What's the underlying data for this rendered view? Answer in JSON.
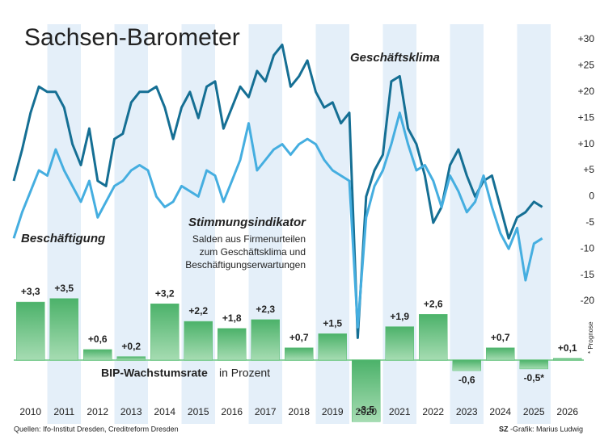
{
  "chart_data": [
    {
      "type": "line",
      "title": "Sachsen-Barometer",
      "annotation": "Stimmungsindikator",
      "subtitle": [
        "Salden aus Firmenurteilen",
        "zum Geschäftsklima und",
        "Beschäftigungserwartungen"
      ],
      "x": [
        2010,
        2010.25,
        2010.5,
        2010.75,
        2011,
        2011.25,
        2011.5,
        2011.75,
        2012,
        2012.25,
        2012.5,
        2012.75,
        2013,
        2013.25,
        2013.5,
        2013.75,
        2014,
        2014.25,
        2014.5,
        2014.75,
        2015,
        2015.25,
        2015.5,
        2015.75,
        2016,
        2016.25,
        2016.5,
        2016.75,
        2017,
        2017.25,
        2017.5,
        2017.75,
        2018,
        2018.25,
        2018.5,
        2018.75,
        2019,
        2019.25,
        2019.5,
        2019.75,
        2020,
        2020.25,
        2020.5,
        2020.75,
        2021,
        2021.25,
        2021.5,
        2021.75,
        2022,
        2022.25,
        2022.5,
        2022.75,
        2023,
        2023.25,
        2023.5,
        2023.75,
        2024,
        2024.25,
        2024.5,
        2024.75,
        2025,
        2025.25,
        2025.5,
        2025.75
      ],
      "xlim": [
        2010,
        2027
      ],
      "ylim": [
        -20,
        30
      ],
      "yticks": [
        {
          "value": 30,
          "label": "+30"
        },
        {
          "value": 25,
          "label": "+25"
        },
        {
          "value": 20,
          "label": "+20"
        },
        {
          "value": 15,
          "label": "+15"
        },
        {
          "value": 10,
          "label": "+10"
        },
        {
          "value": 5,
          "label": "+5"
        },
        0,
        -5,
        -10,
        -15,
        -20
      ],
      "grid": false,
      "series": [
        {
          "name": "Geschäftsklima",
          "color": "#156f94",
          "values": [
            3,
            9,
            16,
            21,
            20,
            20,
            17,
            10,
            6,
            13,
            3,
            2,
            11,
            12,
            18,
            20,
            20,
            21,
            17,
            11,
            17,
            20,
            15,
            21,
            22,
            13,
            17,
            21,
            19,
            24,
            22,
            27,
            29,
            21,
            23,
            26,
            20,
            17,
            18,
            14,
            16,
            -27,
            0,
            5,
            8,
            22,
            23,
            13,
            10,
            4,
            -5,
            -2,
            6,
            9,
            4,
            0,
            3,
            4,
            -2,
            -8,
            -4,
            -3,
            -1,
            -2
          ]
        },
        {
          "name": "Beschäftigung",
          "color": "#45aee0",
          "values": [
            -8,
            -3,
            1,
            5,
            4,
            9,
            5,
            2,
            -1,
            3,
            -4,
            -1,
            2,
            3,
            5,
            6,
            5,
            0,
            -2,
            -1,
            2,
            1,
            0,
            5,
            4,
            -1,
            3,
            7,
            14,
            5,
            7,
            9,
            10,
            8,
            10,
            11,
            10,
            7,
            5,
            4,
            3,
            -25,
            -4,
            2,
            5,
            10,
            16,
            10,
            5,
            6,
            3,
            -2,
            4,
            1,
            -3,
            -1,
            4,
            -2,
            -7,
            -10,
            -6,
            -16,
            -9,
            -8
          ]
        }
      ]
    },
    {
      "type": "bar",
      "title": "BIP-Wachstumsrate",
      "unit": "in Prozent",
      "note": "* Prognose",
      "categories": [
        "2010",
        "2011",
        "2012",
        "2013",
        "2014",
        "2015",
        "2016",
        "2017",
        "2018",
        "2019",
        "2020",
        "2021",
        "2022",
        "2023",
        "2024",
        "2025",
        "2026"
      ],
      "values": [
        3.3,
        3.5,
        0.6,
        0.2,
        3.2,
        2.2,
        1.8,
        2.3,
        0.7,
        1.5,
        -3.5,
        1.9,
        2.6,
        -0.6,
        0.7,
        -0.5,
        0.1
      ],
      "value_labels": [
        "+3,3",
        "+3,5",
        "+0,6",
        "+0,2",
        "+3,2",
        "+2,2",
        "+1,8",
        "+2,3",
        "+0,7",
        "+1,5",
        "-3,5",
        "+1,9",
        "+2,6",
        "-0,6",
        "+0,7",
        "-0,5*",
        "+0,1"
      ],
      "color": "#5cbf78"
    }
  ],
  "source": "Quellen: Ifo-Institut Dresden, Creditreform Dresden",
  "credit": {
    "brand": "SZ",
    "text": "-Grafik: Marius Ludwig"
  }
}
